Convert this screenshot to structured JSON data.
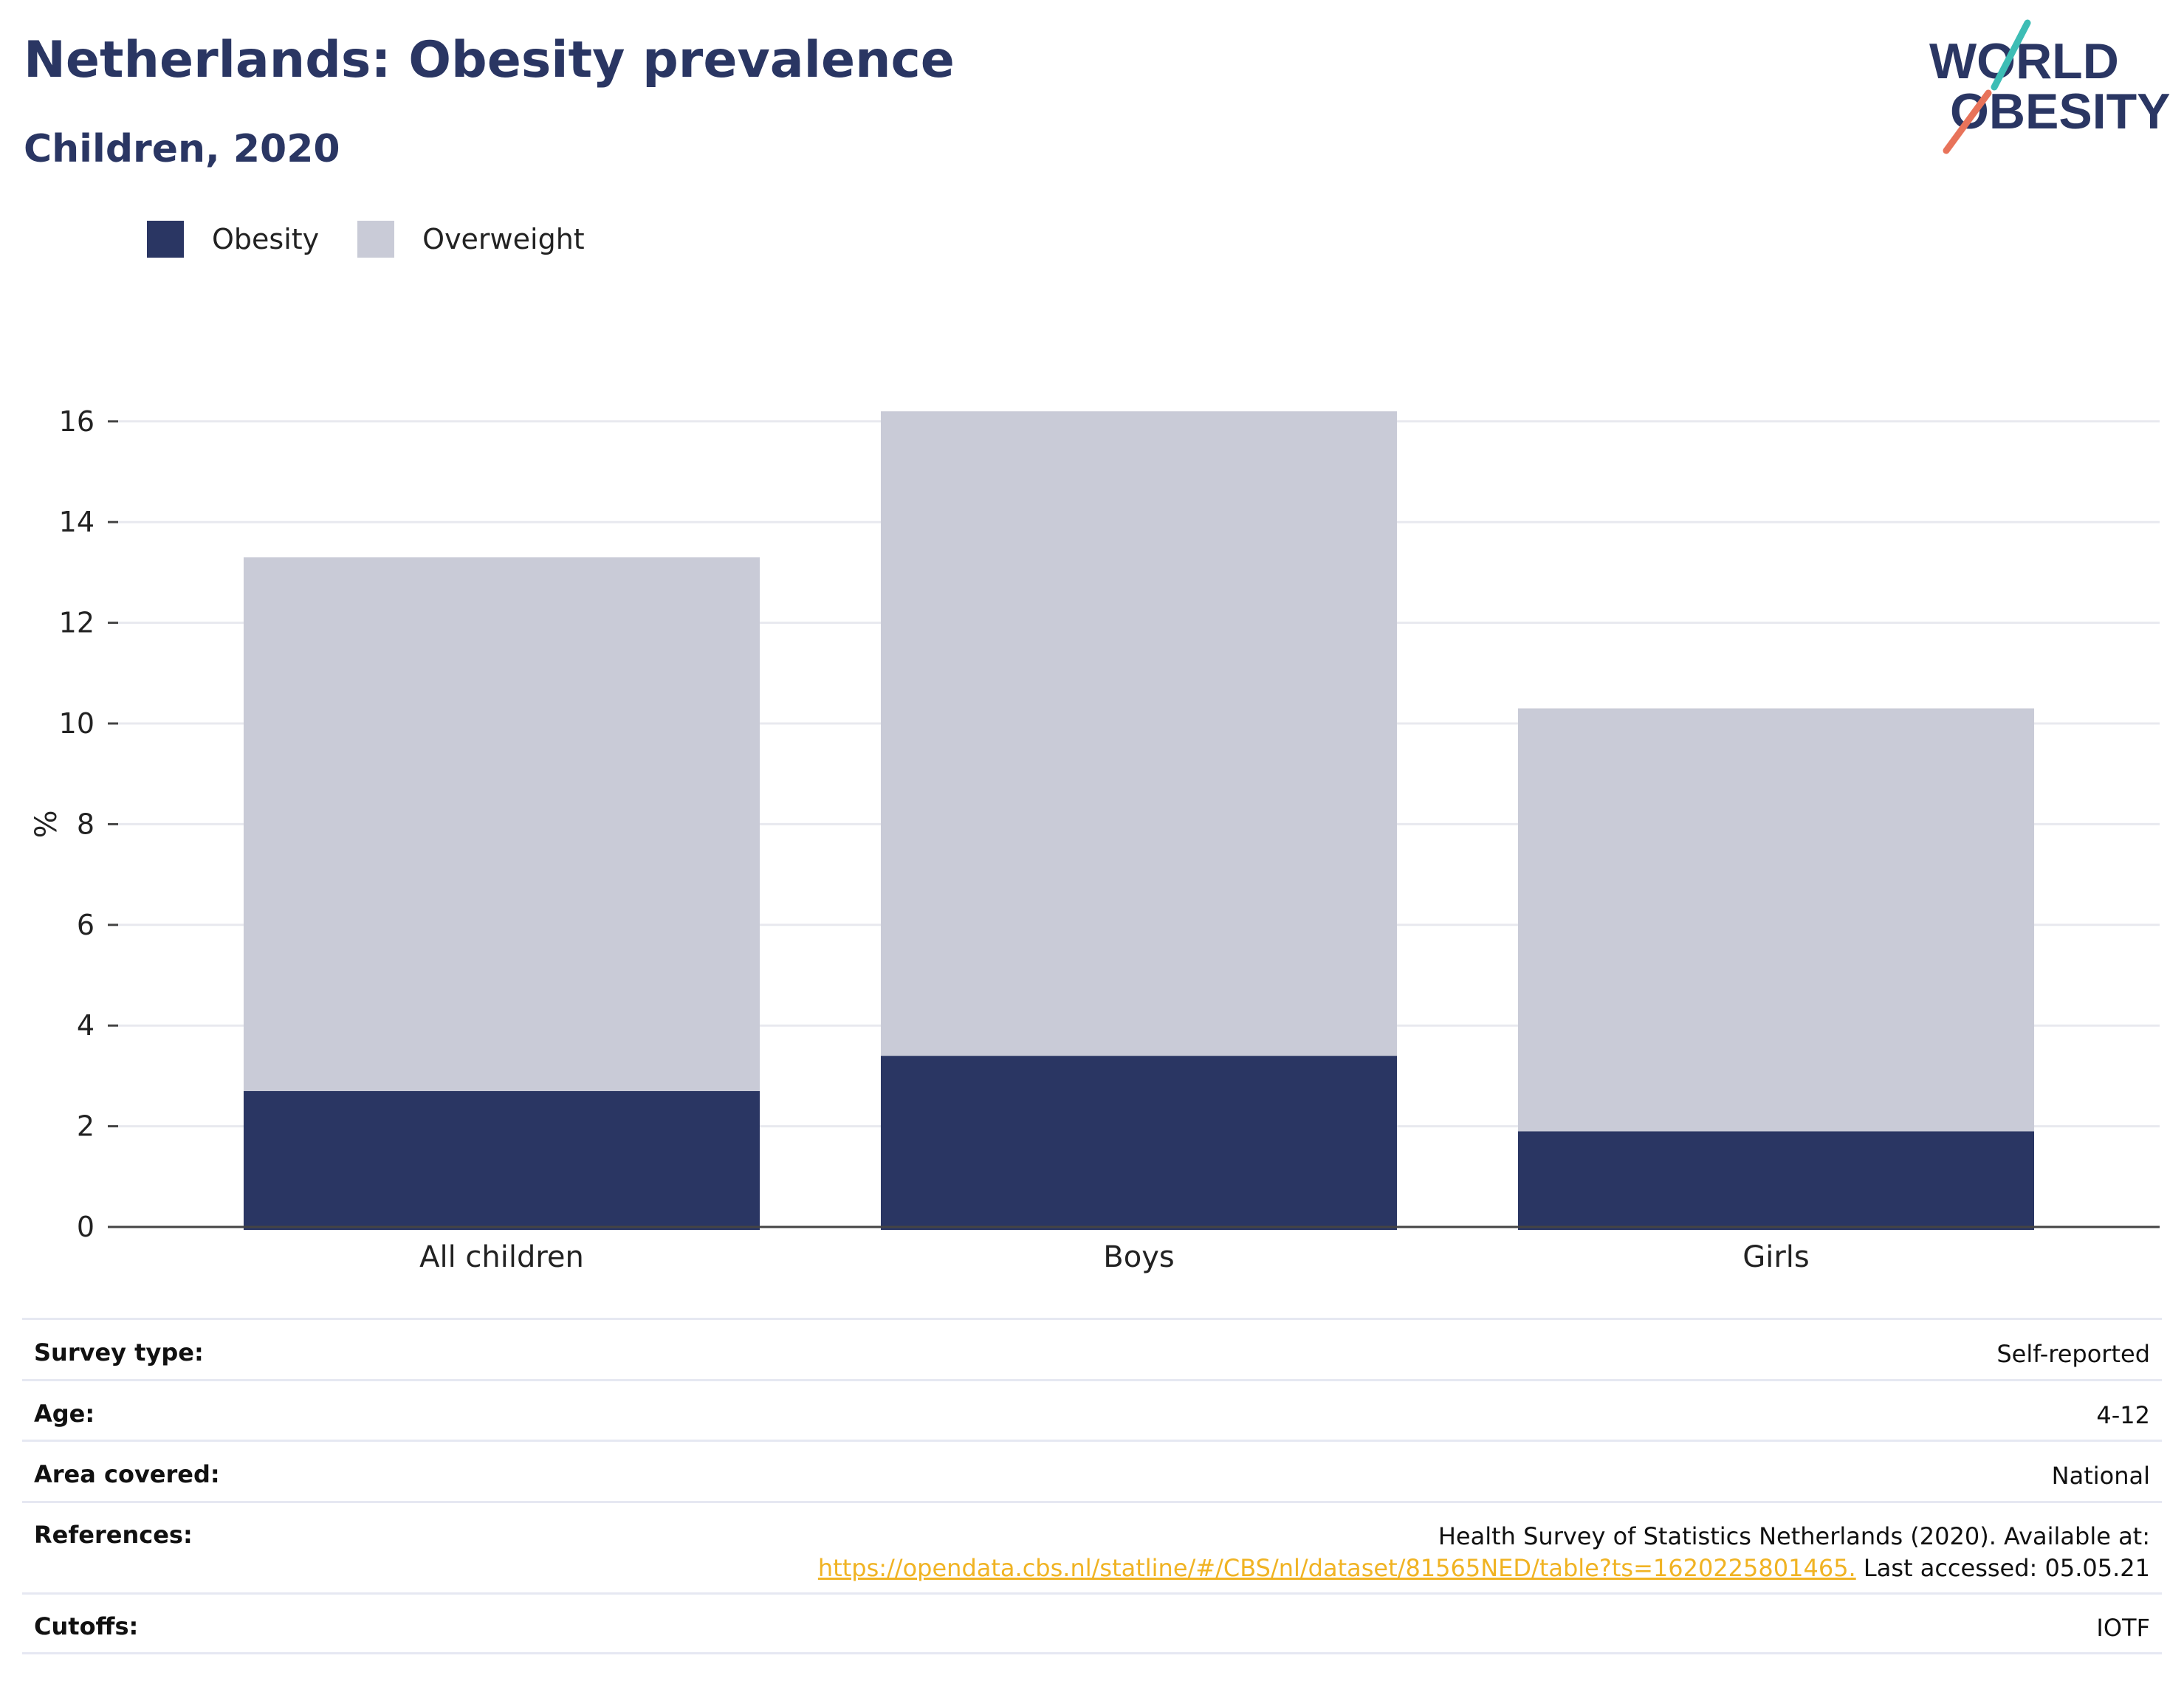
{
  "header": {
    "title": "Netherlands: Obesity prevalence",
    "subtitle": "Children, 2020"
  },
  "logo": {
    "line1": "WORLD",
    "line2": "OBESITY",
    "accent_teal": "#3dbdb5",
    "accent_coral": "#e8735a"
  },
  "colors": {
    "obesity": "#2a3663",
    "overweight": "#c9cbd7",
    "title": "#2a3663",
    "link": "#f0b323"
  },
  "legend": {
    "items": [
      {
        "label": "Obesity",
        "color": "#2a3663"
      },
      {
        "label": "Overweight",
        "color": "#c9cbd7"
      }
    ]
  },
  "chart_data": {
    "type": "bar",
    "stacked": true,
    "categories": [
      "All children",
      "Boys",
      "Girls"
    ],
    "series": [
      {
        "name": "Obesity",
        "values": [
          2.7,
          3.4,
          1.9
        ]
      },
      {
        "name": "Overweight",
        "values": [
          10.6,
          12.8,
          8.4
        ]
      }
    ],
    "ylabel": "%",
    "ylim": [
      0,
      16.5
    ],
    "yticks": [
      0,
      2,
      4,
      6,
      8,
      10,
      12,
      14,
      16
    ],
    "grid": true,
    "legend_position": "top-left"
  },
  "info": {
    "survey_type_label": "Survey type:",
    "survey_type_value": "Self-reported",
    "age_label": "Age:",
    "age_value": "4-12",
    "area_label": "Area covered:",
    "area_value": "National",
    "references_label": "References:",
    "references_text": "Health Survey of Statistics Netherlands (2020). Available at:",
    "references_url": "https://opendata.cbs.nl/statline/#/CBS/nl/dataset/81565NED/table?ts=1620225801465.",
    "references_suffix": "Last accessed: 05.05.21",
    "cutoffs_label": "Cutoffs:",
    "cutoffs_value": "IOTF"
  }
}
